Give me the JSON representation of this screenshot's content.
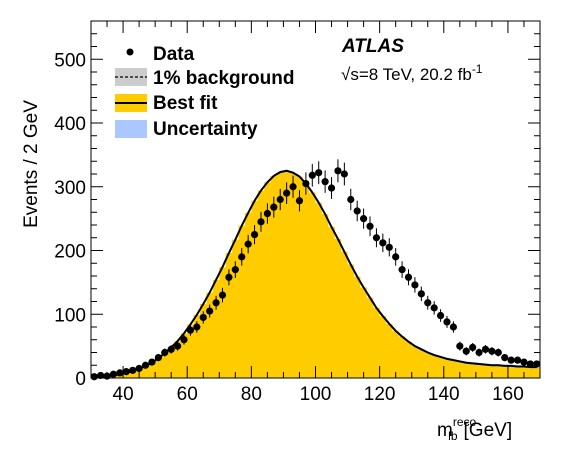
{
  "chart_data": {
    "type": "histogram",
    "x": [
      30,
      32,
      34,
      36,
      38,
      40,
      42,
      44,
      46,
      48,
      50,
      52,
      54,
      56,
      58,
      60,
      62,
      64,
      66,
      68,
      70,
      72,
      74,
      76,
      78,
      80,
      82,
      84,
      86,
      88,
      90,
      92,
      94,
      96,
      98,
      100,
      102,
      104,
      106,
      108,
      110,
      112,
      114,
      116,
      118,
      120,
      122,
      124,
      126,
      128,
      130,
      132,
      134,
      136,
      138,
      140,
      142,
      144,
      146,
      148,
      150,
      152,
      154,
      156,
      158,
      160,
      162,
      164,
      166,
      168
    ],
    "data": [
      2,
      4,
      3,
      6,
      8,
      10,
      12,
      15,
      20,
      25,
      32,
      40,
      45,
      50,
      60,
      75,
      80,
      95,
      105,
      118,
      130,
      158,
      170,
      190,
      210,
      225,
      245,
      258,
      268,
      280,
      290,
      300,
      278,
      305,
      318,
      322,
      308,
      298,
      325,
      320,
      280,
      262,
      250,
      238,
      220,
      212,
      205,
      190,
      170,
      158,
      146,
      132,
      118,
      110,
      98,
      88,
      80,
      50,
      42,
      48,
      40,
      45,
      42,
      40,
      32,
      28,
      28,
      25,
      22,
      22
    ],
    "best_fit": [
      1,
      2,
      3,
      4,
      6,
      8,
      11,
      14,
      19,
      24,
      31,
      39,
      48,
      58,
      70,
      84,
      99,
      116,
      134,
      154,
      174,
      196,
      217,
      239,
      259,
      278,
      294,
      307,
      317,
      323,
      325,
      322,
      316,
      305,
      291,
      275,
      257,
      237,
      218,
      198,
      178,
      159,
      142,
      126,
      110,
      97,
      85,
      74,
      65,
      57,
      50,
      45,
      40,
      36,
      33,
      30,
      28,
      26,
      24,
      23,
      22,
      21,
      20,
      20,
      19,
      19,
      18,
      18,
      17,
      17
    ],
    "background_level": [
      0,
      0,
      0,
      0,
      0,
      0,
      0,
      0,
      0,
      0,
      0,
      0,
      0,
      0,
      0,
      0,
      0,
      0,
      0,
      0,
      0,
      0,
      0,
      0,
      0,
      0,
      0,
      0,
      0,
      0,
      0,
      0,
      0,
      0,
      0,
      0,
      0,
      0,
      0,
      0,
      0,
      0,
      0,
      0,
      0,
      0,
      0,
      0,
      0,
      0,
      0,
      0,
      0,
      0,
      0,
      0,
      0,
      0,
      0,
      0,
      0,
      0,
      0,
      0,
      0,
      0,
      0,
      0,
      0,
      0
    ],
    "xlim": [
      30,
      170
    ],
    "ylim": [
      0,
      560
    ],
    "x_ticks": [
      40,
      60,
      80,
      100,
      120,
      140,
      160
    ],
    "y_ticks": [
      0,
      100,
      200,
      300,
      400,
      500
    ],
    "ylabel": "Events / 2 GeV",
    "xlabel_main": "m",
    "xlabel_sup": "reco",
    "xlabel_sub": "lb",
    "xlabel_unit": "[GeV]",
    "legend_position": "top-left",
    "legend": [
      {
        "label": "Data",
        "style": "marker"
      },
      {
        "label": "1% background",
        "style": "dashed-box"
      },
      {
        "label": "Best fit",
        "style": "filled-line"
      },
      {
        "label": "Uncertainty",
        "style": "box"
      }
    ],
    "experiment": "ATLAS",
    "lumi_sqrt": "√",
    "lumi_text": "s=8 TeV, 20.2 fb",
    "lumi_sup": "-1",
    "colors": {
      "fit_fill": "#ffcc00",
      "fit_line": "#000000",
      "uncertainty": "#aac8ff",
      "background_fill": "#cccccc",
      "data": "#000000"
    }
  }
}
